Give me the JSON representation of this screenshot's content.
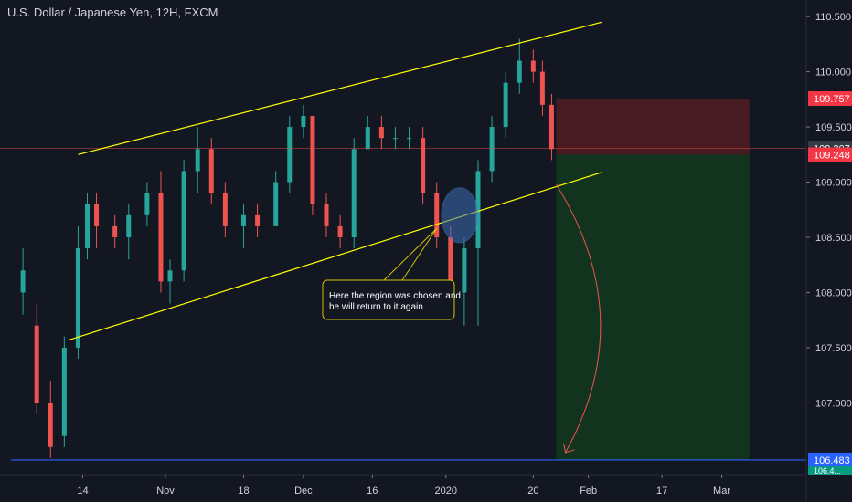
{
  "header": {
    "title": "U.S. Dollar / Japanese Yen, 12H, FXCM"
  },
  "colors": {
    "background": "#131722",
    "up": "#26a69a",
    "down": "#ef5350",
    "trendline": "#ffff00",
    "target_line": "#2962ff",
    "stop_zone": "#4a1b22",
    "profit_zone": "#12351f",
    "arrow": "#ef5350"
  },
  "annotation": {
    "text_line1": "Here the region was chosen and",
    "text_line2": "he will return to it again"
  },
  "chart_data": {
    "type": "candlestick",
    "y_axis": {
      "ticks": [
        "110.500",
        "110.000",
        "109.500",
        "109.000",
        "108.500",
        "108.000",
        "107.500",
        "107.000"
      ],
      "ylim": [
        106.35,
        110.65
      ]
    },
    "x_axis": {
      "ticks": [
        "14",
        "Nov",
        "18",
        "Dec",
        "16",
        "2020",
        "20",
        "Feb",
        "17",
        "Mar"
      ]
    },
    "price_labels": {
      "stop": "109.757",
      "current": "109.307",
      "entry": "109.248",
      "target": "106.483",
      "partial": "106.4..."
    },
    "trade": {
      "entry": 109.248,
      "stop": 109.757,
      "target": 106.483,
      "current": 109.307
    },
    "series": [
      {
        "date": "2019-10-01",
        "o": 108.0,
        "h": 108.4,
        "l": 107.8,
        "c": 108.2
      },
      {
        "date": "2019-10-04",
        "o": 107.7,
        "h": 107.9,
        "l": 106.9,
        "c": 107.0
      },
      {
        "date": "2019-10-07",
        "o": 107.0,
        "h": 107.2,
        "l": 106.5,
        "c": 106.6
      },
      {
        "date": "2019-10-10",
        "o": 106.7,
        "h": 107.6,
        "l": 106.6,
        "c": 107.5
      },
      {
        "date": "2019-10-13",
        "o": 107.5,
        "h": 108.6,
        "l": 107.4,
        "c": 108.4
      },
      {
        "date": "2019-10-15",
        "o": 108.4,
        "h": 108.9,
        "l": 108.3,
        "c": 108.8
      },
      {
        "date": "2019-10-17",
        "o": 108.8,
        "h": 108.9,
        "l": 108.4,
        "c": 108.6
      },
      {
        "date": "2019-10-21",
        "o": 108.6,
        "h": 108.7,
        "l": 108.4,
        "c": 108.5
      },
      {
        "date": "2019-10-24",
        "o": 108.5,
        "h": 108.8,
        "l": 108.3,
        "c": 108.7
      },
      {
        "date": "2019-10-28",
        "o": 108.7,
        "h": 109.0,
        "l": 108.6,
        "c": 108.9
      },
      {
        "date": "2019-10-31",
        "o": 108.9,
        "h": 109.1,
        "l": 108.0,
        "c": 108.1
      },
      {
        "date": "2019-11-02",
        "o": 108.1,
        "h": 108.3,
        "l": 107.9,
        "c": 108.2
      },
      {
        "date": "2019-11-05",
        "o": 108.2,
        "h": 109.2,
        "l": 108.1,
        "c": 109.1
      },
      {
        "date": "2019-11-08",
        "o": 109.1,
        "h": 109.5,
        "l": 108.9,
        "c": 109.3
      },
      {
        "date": "2019-11-11",
        "o": 109.3,
        "h": 109.4,
        "l": 108.8,
        "c": 108.9
      },
      {
        "date": "2019-11-14",
        "o": 108.9,
        "h": 109.0,
        "l": 108.5,
        "c": 108.6
      },
      {
        "date": "2019-11-18",
        "o": 108.6,
        "h": 108.8,
        "l": 108.4,
        "c": 108.7
      },
      {
        "date": "2019-11-21",
        "o": 108.7,
        "h": 108.8,
        "l": 108.5,
        "c": 108.6
      },
      {
        "date": "2019-11-25",
        "o": 108.6,
        "h": 109.1,
        "l": 108.6,
        "c": 109.0
      },
      {
        "date": "2019-11-28",
        "o": 109.0,
        "h": 109.6,
        "l": 108.9,
        "c": 109.5
      },
      {
        "date": "2019-12-01",
        "o": 109.5,
        "h": 109.7,
        "l": 109.4,
        "c": 109.6
      },
      {
        "date": "2019-12-03",
        "o": 109.6,
        "h": 109.6,
        "l": 108.7,
        "c": 108.8
      },
      {
        "date": "2019-12-06",
        "o": 108.8,
        "h": 108.9,
        "l": 108.5,
        "c": 108.6
      },
      {
        "date": "2019-12-09",
        "o": 108.6,
        "h": 108.7,
        "l": 108.4,
        "c": 108.5
      },
      {
        "date": "2019-12-12",
        "o": 108.5,
        "h": 109.4,
        "l": 108.4,
        "c": 109.3
      },
      {
        "date": "2019-12-15",
        "o": 109.3,
        "h": 109.6,
        "l": 109.3,
        "c": 109.5
      },
      {
        "date": "2019-12-18",
        "o": 109.5,
        "h": 109.6,
        "l": 109.3,
        "c": 109.4
      },
      {
        "date": "2019-12-21",
        "o": 109.4,
        "h": 109.5,
        "l": 109.3,
        "c": 109.4
      },
      {
        "date": "2019-12-24",
        "o": 109.4,
        "h": 109.5,
        "l": 109.3,
        "c": 109.4
      },
      {
        "date": "2019-12-27",
        "o": 109.4,
        "h": 109.5,
        "l": 108.8,
        "c": 108.9
      },
      {
        "date": "2019-12-30",
        "o": 108.9,
        "h": 109.0,
        "l": 108.4,
        "c": 108.5
      },
      {
        "date": "2020-01-02",
        "o": 108.5,
        "h": 108.6,
        "l": 107.8,
        "c": 108.0
      },
      {
        "date": "2020-01-05",
        "o": 108.0,
        "h": 108.5,
        "l": 107.7,
        "c": 108.4
      },
      {
        "date": "2020-01-08",
        "o": 108.4,
        "h": 109.2,
        "l": 107.7,
        "c": 109.1
      },
      {
        "date": "2020-01-11",
        "o": 109.1,
        "h": 109.6,
        "l": 109.0,
        "c": 109.5
      },
      {
        "date": "2020-01-14",
        "o": 109.5,
        "h": 110.0,
        "l": 109.4,
        "c": 109.9
      },
      {
        "date": "2020-01-17",
        "o": 109.9,
        "h": 110.3,
        "l": 109.8,
        "c": 110.1
      },
      {
        "date": "2020-01-20",
        "o": 110.1,
        "h": 110.2,
        "l": 109.9,
        "c": 110.0
      },
      {
        "date": "2020-01-22",
        "o": 110.0,
        "h": 110.1,
        "l": 109.6,
        "c": 109.7
      },
      {
        "date": "2020-01-24",
        "o": 109.7,
        "h": 109.8,
        "l": 109.2,
        "c": 109.3
      }
    ]
  }
}
